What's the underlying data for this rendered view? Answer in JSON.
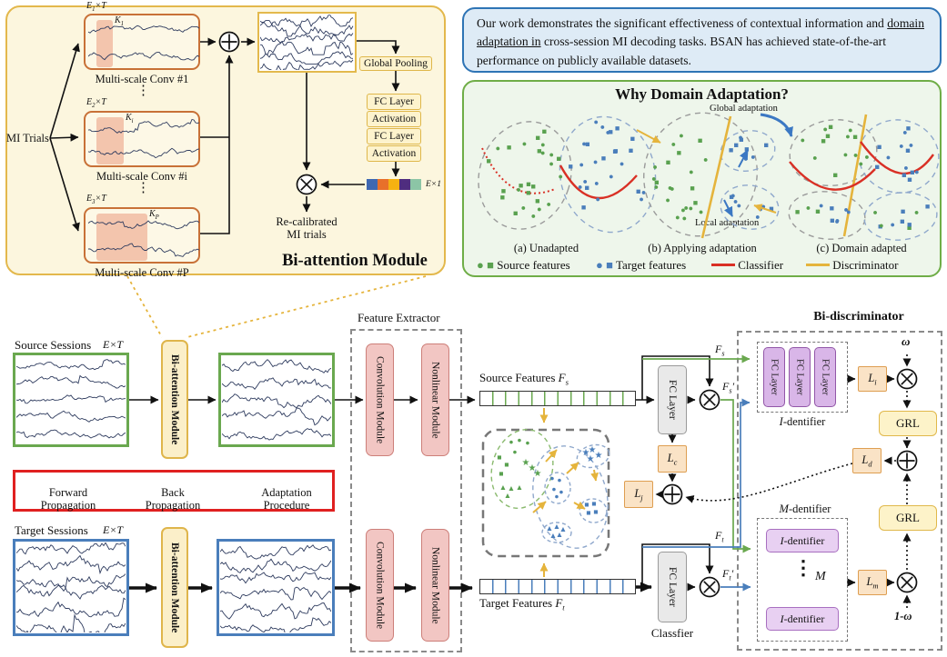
{
  "colors": {
    "vector": [
      "#3E68B2",
      "#E8702A",
      "#F5B211",
      "#4F2D7F",
      "#8CC5A6"
    ],
    "source_green": "#6AA84F",
    "target_blue": "#4A7EBB",
    "classifier_red": "#D93025",
    "discriminator_yellow": "#E5B43C"
  },
  "bi_attention": {
    "title": "Bi-attention Module",
    "input": "MI Trials",
    "vdots": "⋮",
    "blocks": [
      {
        "dim_b": "E",
        "dim_s": "1",
        "dim_r": "×T",
        "k_b": "K",
        "k_s": "1",
        "caption": "Multi-scale Conv #1"
      },
      {
        "dim_b": "E",
        "dim_s": "2",
        "dim_r": "×T",
        "k_b": "K",
        "k_s": "i",
        "caption": "Multi-scale Conv #i"
      },
      {
        "dim_b": "E",
        "dim_s": "3",
        "dim_r": "×T",
        "k_b": "K",
        "k_s": "P",
        "caption": "Multi-scale Conv #P"
      }
    ],
    "pooling": "Global Pooling",
    "fc_stack": [
      "FC Layer",
      "Activation",
      "FC Layer",
      "Activation"
    ],
    "vector_label": "E×1",
    "recal_1": "Re-calibrated",
    "recal_2": "MI trials"
  },
  "abstract": {
    "pre": "Our work demonstrates the significant effectiveness of contextual information and ",
    "underlined": "domain adaptation in",
    "post": " cross-session MI decoding tasks. BSAN has achieved state-of-the-art performance on publicly available datasets."
  },
  "domain_panel": {
    "title": "Why Domain Adaptation?",
    "global_label": "Global adaptation",
    "local_label": "Local adaptation",
    "captions": [
      "(a) Unadapted",
      "(b) Applying adaptation",
      "(c) Domain adapted"
    ],
    "legend": [
      {
        "glyph": "● ■",
        "label": "Source features"
      },
      {
        "glyph": "● ■",
        "label": "Target features"
      },
      {
        "glyph": "",
        "label": "Classifier"
      },
      {
        "glyph": "",
        "label": "Discriminator"
      }
    ]
  },
  "pipeline": {
    "source_label": "Source Sessions",
    "source_dim": "E×T",
    "target_label": "Target Sessions",
    "target_dim": "E×T",
    "module_label": "Bi-attention Module",
    "legend": [
      {
        "l1": "Forward",
        "l2": "Propagation"
      },
      {
        "l1": "Back",
        "l2": "Propagation"
      },
      {
        "l1": "Adaptation",
        "l2": "Procedure"
      }
    ],
    "fe_title": "Feature Extractor",
    "conv_module": "Convolution Module",
    "nonlinear_module": "Nonlinear Module",
    "fc_layer": "FC Layer",
    "classifier": "Classfier",
    "src_feat": {
      "t": "Source Features ",
      "b": "F",
      "s": "s"
    },
    "tgt_feat": {
      "t": "Target Features ",
      "b": "F",
      "s": "t"
    }
  },
  "disc": {
    "title": "Bi-discriminator",
    "i_dent": {
      "i": "I",
      "r": "-dentifier"
    },
    "m_dent": {
      "i": "M",
      "r": "-dentifier"
    },
    "m_sym": "M",
    "mdots": "⋮",
    "grl": "GRL",
    "omega": "ω",
    "one_minus_omega": "1-ω",
    "l_c": {
      "b": "L",
      "s": "c"
    },
    "l_j": {
      "b": "L",
      "s": "j"
    },
    "l_i": {
      "b": "L",
      "s": "i"
    },
    "l_d": {
      "b": "L",
      "s": "d"
    },
    "l_m": {
      "b": "L",
      "s": "m"
    },
    "fs": {
      "b": "F",
      "s": "s",
      "p": ""
    },
    "fsp": {
      "b": "F",
      "s": "s",
      "p": "′"
    },
    "ft": {
      "b": "F",
      "s": "t",
      "p": ""
    },
    "ftp": {
      "b": "F",
      "s": "t",
      "p": "′"
    }
  }
}
